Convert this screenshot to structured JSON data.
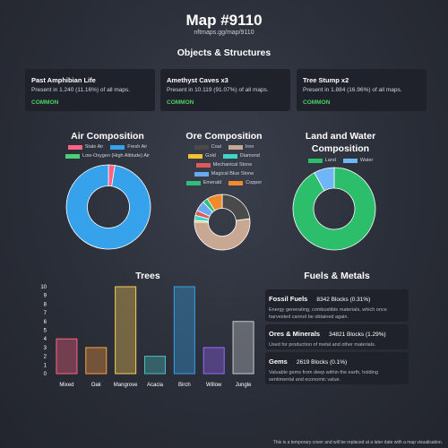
{
  "header": {
    "title": "Map #9110",
    "subtitle": "nftmaps.gg/map/9110"
  },
  "objects": {
    "heading": "Objects & Structures",
    "cards": [
      {
        "name": "Past Amphibian Life",
        "presence": "Present in 1.240 (11.16%) of all maps.",
        "rarity": "COMMON"
      },
      {
        "name": "Amethyst Caves x3",
        "presence": "Present in 10.119 (91.07%) of all maps.",
        "rarity": "COMMON"
      },
      {
        "name": "Tree Stump x2",
        "presence": "Present in 1.884 (16.96%) of all maps.",
        "rarity": "COMMON"
      }
    ]
  },
  "air": {
    "heading": "Air Composition",
    "legend": [
      {
        "label": "Stale Air",
        "color": "#ff6384"
      },
      {
        "label": "Fresh Air",
        "color": "#36a2eb"
      },
      {
        "label": "Low-Oxygen (High Altitude) Air",
        "color": "#4bd07a"
      }
    ]
  },
  "ore": {
    "heading": "Ore Composition",
    "legend": [
      {
        "label": "Coal",
        "color": "#4a4a4a"
      },
      {
        "label": "Iron",
        "color": "#c8a892"
      },
      {
        "label": "Gold",
        "color": "#f2c230"
      },
      {
        "label": "Diamond",
        "color": "#3fd6c6"
      },
      {
        "label": "Mechanical Stone",
        "color": "#e05a5a"
      },
      {
        "label": "Magical Blue Stone",
        "color": "#6aa9f0"
      },
      {
        "label": "Emerald",
        "color": "#2ebd7a"
      },
      {
        "label": "Copper",
        "color": "#f08a2c"
      }
    ]
  },
  "land": {
    "heading_line1": "Land and Water",
    "heading_line2": "Composition",
    "legend": [
      {
        "label": "Land",
        "color": "#2dbe6c"
      },
      {
        "label": "Water",
        "color": "#6fb6f8"
      }
    ]
  },
  "trees_title": "Trees",
  "fuels": {
    "heading": "Fuels & Metals",
    "items": [
      {
        "name": "Fossil Fuels",
        "amount": "8342 Blocks (0.31%)",
        "desc": "Energy generating, combustible materials, which once harvested cannot be obtained again."
      },
      {
        "name": "Ores & Minerals",
        "amount": "34821 Blocks (1.29%)",
        "desc": "Used for production of metal and other materials."
      },
      {
        "name": "Gems",
        "amount": "2619 Blocks (0.1%)",
        "desc": "Valuable gems from deep within the earth, holding sentimental and economic value."
      }
    ]
  },
  "footer": "This is a temporary cover and will be replaced at a later date with a map visualisation.",
  "chart_data": [
    {
      "type": "pie",
      "title": "Air Composition",
      "labels": [
        "Stale Air",
        "Fresh Air",
        "Low-Oxygen (High Altitude) Air"
      ],
      "values": [
        2.5,
        97.5,
        0
      ],
      "colors": [
        "#ff6384",
        "#36a2eb",
        "#4bd07a"
      ]
    },
    {
      "type": "pie",
      "title": "Ore Composition",
      "labels": [
        "Coal",
        "Iron",
        "Gold",
        "Diamond",
        "Mechanical Stone",
        "Magical Blue Stone",
        "Emerald",
        "Copper"
      ],
      "values": [
        23,
        52,
        1,
        3,
        3,
        6,
        3,
        9
      ],
      "colors": [
        "#4a4a4a",
        "#c8a892",
        "#f2c230",
        "#3fd6c6",
        "#e05a5a",
        "#6aa9f0",
        "#2ebd7a",
        "#f08a2c"
      ]
    },
    {
      "type": "pie",
      "title": "Land and Water Composition",
      "labels": [
        "Land",
        "Water"
      ],
      "values": [
        92,
        8
      ],
      "colors": [
        "#2dbe6c",
        "#6fb6f8"
      ]
    },
    {
      "type": "bar",
      "title": "Trees",
      "categories": [
        "Mixed",
        "Oak",
        "Mangrove",
        "Acacia",
        "Birch",
        "Willow",
        "Jungle"
      ],
      "values": [
        4,
        3,
        10,
        2,
        10,
        3,
        6
      ],
      "ylim": [
        0,
        10
      ],
      "yticks": [
        0,
        1,
        2,
        3,
        4,
        5,
        6,
        7,
        8,
        9,
        10
      ],
      "colors": [
        "#ff6384",
        "#ff9f40",
        "#ffcd56",
        "#4bc0c0",
        "#36a2eb",
        "#9966ff",
        "#c9cbcf"
      ]
    }
  ]
}
